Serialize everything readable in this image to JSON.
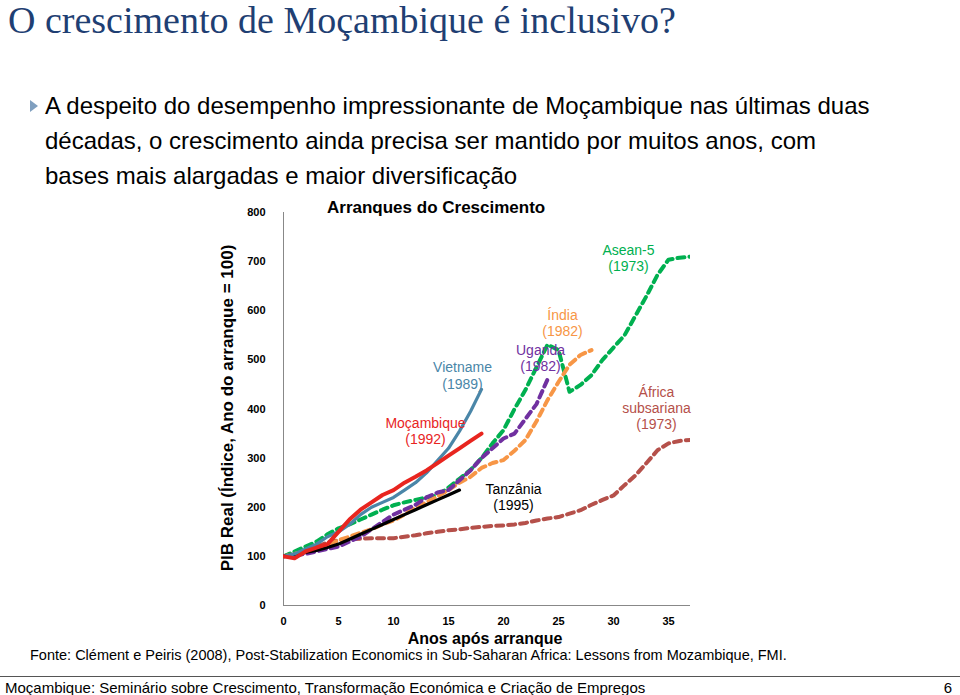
{
  "page": {
    "title": "O crescimento de Moçambique é inclusivo?",
    "bullet": "A despeito do desempenho impressionante de Moçambique nas últimas duas décadas, o crescimento ainda precisa ser mantido por muitos anos, com bases mais alargadas e maior diversificação",
    "source": "Fonte: Clément e Peiris (2008), Post-Stabilization Economics in Sub-Saharan Africa: Lessons from Mozambique, FMI.",
    "footer": "Moçambique: Seminário sobre Crescimento, Transformação Económica e Criação de Empregos",
    "page_number": "6"
  },
  "chart_data": {
    "type": "line",
    "title": "Arranques do Crescimento",
    "x_label": "Anos após arranque",
    "y_label": "PIB Real (Índice, Ano do arranque = 100)",
    "x": [
      0,
      1,
      2,
      3,
      4,
      5,
      6,
      7,
      8,
      9,
      10,
      11,
      12,
      13,
      14,
      15,
      16,
      17,
      18,
      19,
      20,
      21,
      22,
      23,
      24,
      25,
      26,
      27,
      28,
      29,
      30,
      31,
      32,
      33,
      34,
      35,
      36,
      37
    ],
    "xlim": [
      0,
      37
    ],
    "xticks": [
      0,
      5,
      10,
      15,
      20,
      25,
      30,
      35
    ],
    "ylim": [
      0,
      800
    ],
    "yticks": [
      0,
      100,
      200,
      300,
      400,
      500,
      600,
      700,
      800
    ],
    "grid": false,
    "series": [
      {
        "name": "África subsariana (1973)",
        "color": "#b5504a",
        "line_style": "dashed",
        "values": [
          100,
          108,
          115,
          120,
          128,
          133,
          135,
          136,
          137,
          137,
          137,
          140,
          143,
          147,
          150,
          153,
          155,
          158,
          160,
          162,
          163,
          165,
          168,
          173,
          177,
          180,
          187,
          194,
          205,
          215,
          224,
          245,
          265,
          290,
          316,
          330,
          335,
          337
        ]
      },
      {
        "name": "Asean-5 (1973)",
        "color": "#00b050",
        "line_style": "dashed",
        "values": [
          100,
          110,
          120,
          130,
          145,
          157,
          165,
          175,
          185,
          195,
          204,
          210,
          215,
          220,
          224,
          240,
          258,
          276,
          300,
          330,
          357,
          400,
          439,
          485,
          531,
          520,
          435,
          449,
          469,
          500,
          525,
          550,
          590,
          630,
          673,
          704,
          708,
          710
        ]
      },
      {
        "name": "Índia (1982)",
        "color": "#f79646",
        "line_style": "dashed",
        "values": [
          100,
          105,
          110,
          115,
          122,
          133,
          140,
          148,
          155,
          165,
          173,
          185,
          200,
          210,
          222,
          235,
          250,
          262,
          280,
          290,
          296,
          315,
          337,
          375,
          418,
          455,
          490,
          510,
          520,
          null,
          null,
          null,
          null,
          null,
          null,
          null,
          null,
          null
        ]
      },
      {
        "name": "Uganda (1982)",
        "color": "#7030a0",
        "line_style": "dashed",
        "values": [
          100,
          102,
          105,
          110,
          115,
          120,
          130,
          140,
          155,
          170,
          185,
          195,
          205,
          220,
          230,
          235,
          255,
          275,
          300,
          320,
          340,
          350,
          380,
          410,
          460,
          null,
          null,
          null,
          null,
          null,
          null,
          null,
          null,
          null,
          null,
          null,
          null,
          null
        ]
      },
      {
        "name": "Tanzânia (1995)",
        "color": "#000000",
        "line_style": "solid",
        "values": [
          100,
          104,
          108,
          112,
          118,
          125,
          135,
          145,
          155,
          165,
          175,
          185,
          195,
          205,
          215,
          225,
          235,
          null,
          null,
          null,
          null,
          null,
          null,
          null,
          null,
          null,
          null,
          null,
          null,
          null,
          null,
          null,
          null,
          null,
          null,
          null,
          null,
          null
        ]
      },
      {
        "name": "Vietname (1989)",
        "color": "#4a86a8",
        "line_style": "solid",
        "values": [
          100,
          105,
          115,
          125,
          140,
          150,
          165,
          185,
          200,
          210,
          220,
          235,
          250,
          270,
          295,
          320,
          355,
          395,
          440,
          null,
          null,
          null,
          null,
          null,
          null,
          null,
          null,
          null,
          null,
          null,
          null,
          null,
          null,
          null,
          null,
          null,
          null,
          null
        ]
      },
      {
        "name": "Moçambique (1992)",
        "color": "#e8251f",
        "line_style": "solid",
        "values": [
          100,
          96,
          110,
          118,
          125,
          150,
          175,
          195,
          210,
          225,
          235,
          250,
          262,
          275,
          290,
          305,
          320,
          335,
          350,
          null,
          null,
          null,
          null,
          null,
          null,
          null,
          null,
          null,
          null,
          null,
          null,
          null,
          null,
          null,
          null,
          null,
          null,
          null
        ]
      }
    ]
  }
}
